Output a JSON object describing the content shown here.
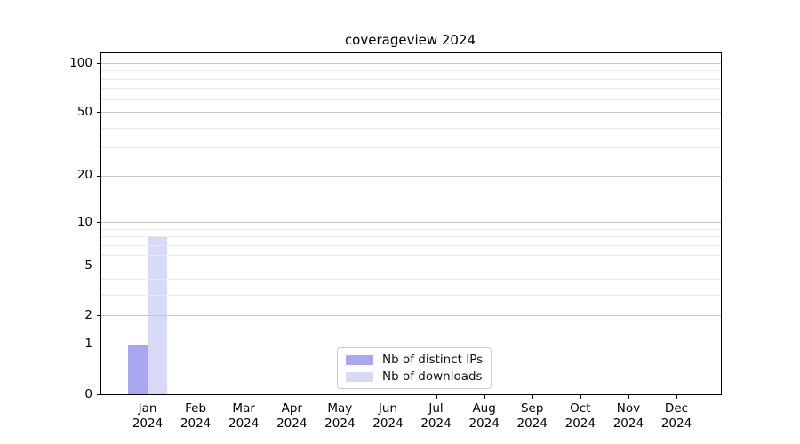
{
  "chart_data": {
    "type": "bar",
    "title": "coverageview 2024",
    "categories": [
      "Jan",
      "Feb",
      "Mar",
      "Apr",
      "May",
      "Jun",
      "Jul",
      "Aug",
      "Sep",
      "Oct",
      "Nov",
      "Dec"
    ],
    "year_label": "2024",
    "series": [
      {
        "name": "Nb of distinct IPs",
        "color": "#a8a8f2",
        "values": [
          1,
          0,
          0,
          0,
          0,
          0,
          0,
          0,
          0,
          0,
          0,
          0
        ]
      },
      {
        "name": "Nb of downloads",
        "color": "#d8d8f7",
        "values": [
          8,
          0,
          0,
          0,
          0,
          0,
          0,
          0,
          0,
          0,
          0,
          0
        ]
      }
    ],
    "xlabel": "",
    "ylabel": "",
    "y_scale": "log1p",
    "y_major_ticks": [
      0,
      1,
      2,
      5,
      10,
      20,
      50,
      100
    ],
    "y_minor_ticks": [
      3,
      4,
      6,
      7,
      8,
      9,
      30,
      40,
      60,
      70,
      80,
      90
    ],
    "ylim": [
      0,
      113
    ],
    "grid": "horizontal",
    "grid_above_bars": true,
    "legend_position": "lower center",
    "colors": {
      "grid_major": "#c6c6c6",
      "grid_minor": "#eaeaea",
      "spine": "#000000",
      "background": "#ffffff"
    }
  }
}
